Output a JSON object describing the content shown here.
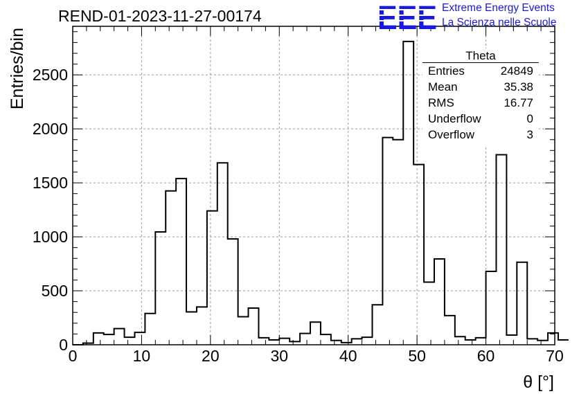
{
  "header": {
    "run_title": "REND-01-2023-11-27-00174",
    "logo_text": "EEE",
    "logo_line1": "Extreme Energy Events",
    "logo_line2": "La Scienza nelle Scuole",
    "logo_color": "#1a1adf"
  },
  "stats_box": {
    "title": "Theta",
    "rows": [
      {
        "label": "Entries",
        "value": "24849"
      },
      {
        "label": "Mean",
        "value": "35.38"
      },
      {
        "label": "RMS",
        "value": "16.77"
      },
      {
        "label": "Underflow",
        "value": "0"
      },
      {
        "label": "Overflow",
        "value": "3"
      }
    ]
  },
  "chart_data": {
    "type": "bar",
    "style": "step-histogram",
    "title": "REND-01-2023-11-27-00174",
    "xlabel": "θ [°]",
    "ylabel": "Entries/bin",
    "xlim": [
      0,
      70
    ],
    "ylim": [
      0,
      2950
    ],
    "x_ticks": [
      0,
      10,
      20,
      30,
      40,
      50,
      60,
      70
    ],
    "y_ticks": [
      0,
      500,
      1000,
      1500,
      2000,
      2500
    ],
    "grid": true,
    "bin_width": 1.5,
    "bin_edges_start": 0,
    "values": [
      0,
      15,
      110,
      95,
      150,
      70,
      115,
      290,
      1045,
      1425,
      1540,
      305,
      350,
      1240,
      1685,
      980,
      260,
      340,
      65,
      45,
      60,
      30,
      105,
      210,
      95,
      40,
      20,
      55,
      70,
      370,
      1920,
      1900,
      2810,
      1670,
      580,
      795,
      270,
      75,
      45,
      65,
      680,
      1760,
      90,
      765,
      55,
      40,
      110,
      45
    ],
    "line_color": "#000000"
  }
}
